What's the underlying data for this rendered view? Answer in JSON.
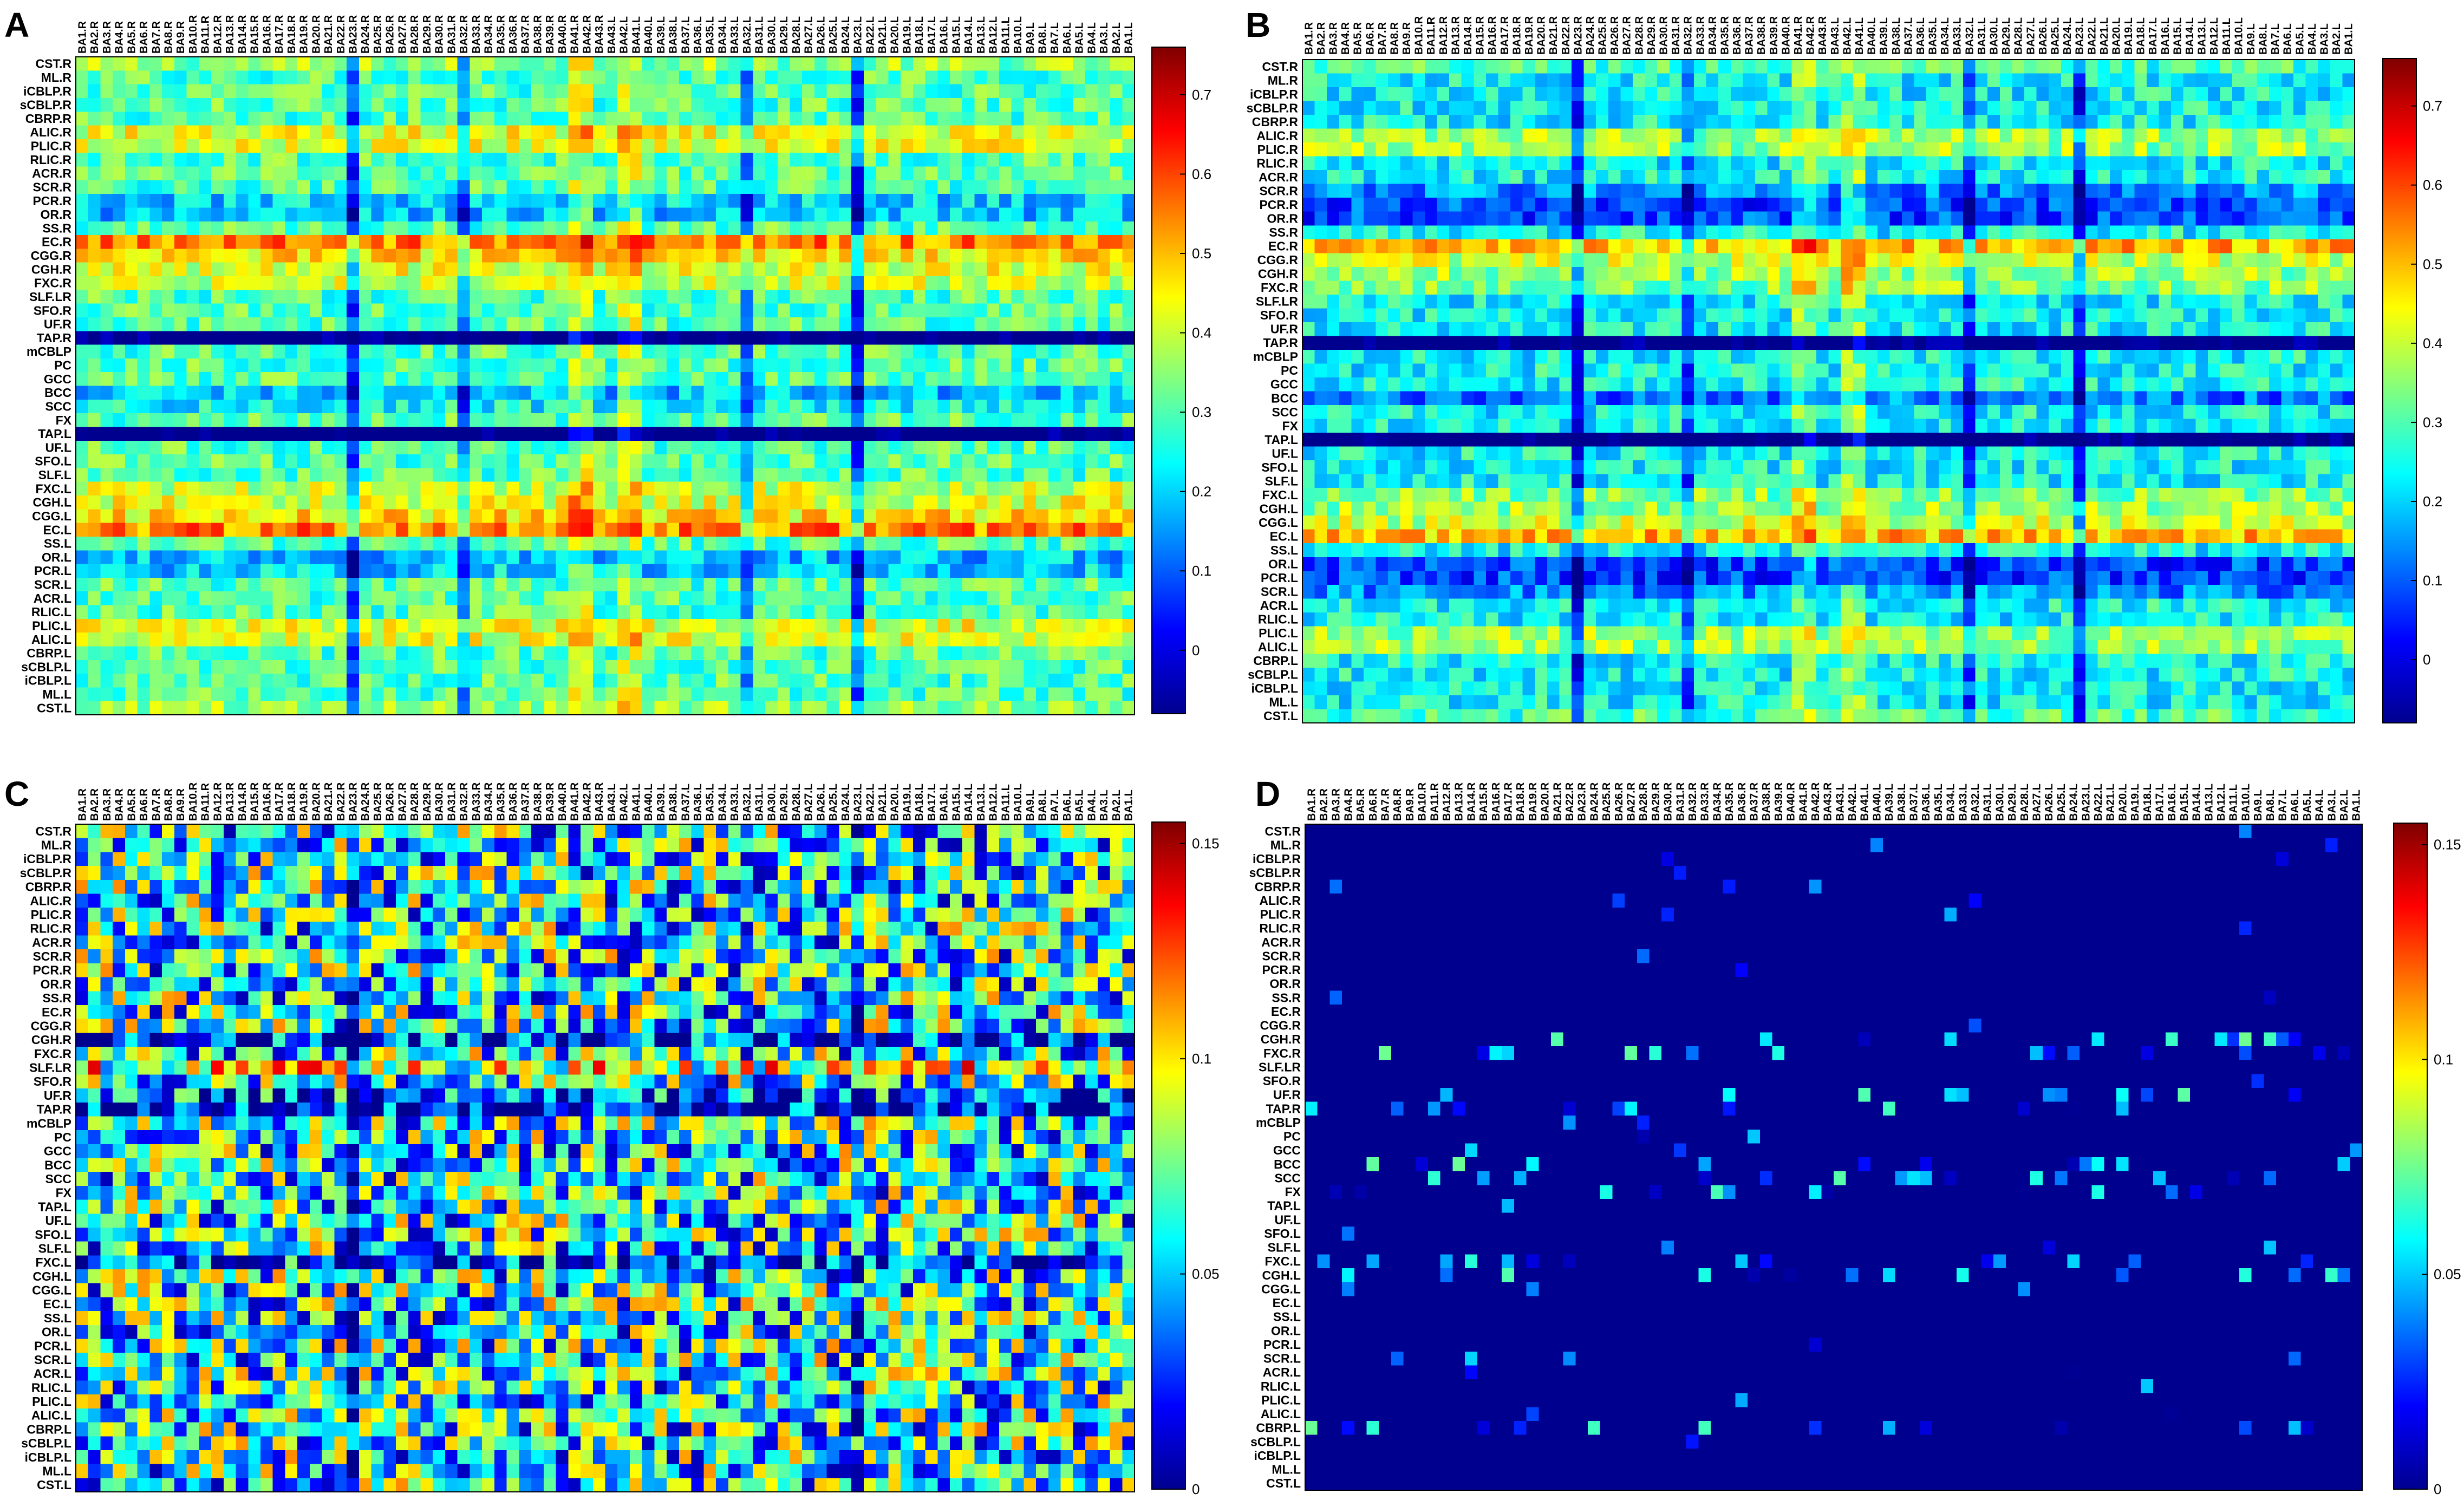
{
  "figure": {
    "description_domain": "heatmap figure, four panels",
    "colormap": [
      "#00008f",
      "#0000ff",
      "#0080ff",
      "#00ffff",
      "#80ff80",
      "#ffff00",
      "#ff8000",
      "#ff0000",
      "#800000"
    ]
  },
  "axes": {
    "rows": [
      "CST.R",
      "ML.R",
      "iCBLP.R",
      "sCBLP.R",
      "CBRP.R",
      "ALIC.R",
      "PLIC.R",
      "RLIC.R",
      "ACR.R",
      "SCR.R",
      "PCR.R",
      "OR.R",
      "SS.R",
      "EC.R",
      "CGG.R",
      "CGH.R",
      "FXC.R",
      "SLF.LR",
      "SFO.R",
      "UF.R",
      "TAP.R",
      "mCBLP",
      "PC",
      "GCC",
      "BCC",
      "SCC",
      "FX",
      "TAP.L",
      "UF.L",
      "SFO.L",
      "SLF.L",
      "FXC.L",
      "CGH.L",
      "CGG.L",
      "EC.L",
      "SS.L",
      "OR.L",
      "PCR.L",
      "SCR.L",
      "ACR.L",
      "RLIC.L",
      "PLIC.L",
      "ALIC.L",
      "CBRP.L",
      "sCBLP.L",
      "iCBLP.L",
      "ML.L",
      "CST.L"
    ],
    "columns": [
      "BA1.R",
      "BA2.R",
      "BA3.R",
      "BA4.R",
      "BA5.R",
      "BA6.R",
      "BA7.R",
      "BA8.R",
      "BA9.R",
      "BA10.R",
      "BA11.R",
      "BA12.R",
      "BA13.R",
      "BA14.R",
      "BA15.R",
      "BA16.R",
      "BA17.R",
      "BA18.R",
      "BA19.R",
      "BA20.R",
      "BA21.R",
      "BA22.R",
      "BA23.R",
      "BA24.R",
      "BA25.R",
      "BA26.R",
      "BA27.R",
      "BA28.R",
      "BA29.R",
      "BA30.R",
      "BA31.R",
      "BA32.R",
      "BA33.R",
      "BA34.R",
      "BA35.R",
      "BA36.R",
      "BA37.R",
      "BA38.R",
      "BA39.R",
      "BA40.R",
      "BA41.R",
      "BA42.R",
      "BA43.R",
      "BA43.L",
      "BA42.L",
      "BA41.L",
      "BA40.L",
      "BA39.L",
      "BA38.L",
      "BA37.L",
      "BA36.L",
      "BA35.L",
      "BA34.L",
      "BA33.L",
      "BA32.L",
      "BA31.L",
      "BA30.L",
      "BA29.L",
      "BA28.L",
      "BA27.L",
      "BA26.L",
      "BA25.L",
      "BA24.L",
      "BA23.L",
      "BA22.L",
      "BA21.L",
      "BA20.L",
      "BA19.L",
      "BA18.L",
      "BA17.L",
      "BA16.L",
      "BA15.L",
      "BA14.L",
      "BA13.L",
      "BA12.L",
      "BA11.L",
      "BA10.L",
      "BA9.L",
      "BA8.L",
      "BA7.L",
      "BA6.L",
      "BA5.L",
      "BA4.L",
      "BA3.L",
      "BA2.L",
      "BA1.L"
    ]
  },
  "chart_data": [
    {
      "panel": "A",
      "type": "heatmap",
      "colorbar": {
        "ticks": [
          0,
          0.1,
          0.2,
          0.3,
          0.4,
          0.5,
          0.6,
          0.7
        ],
        "range": [
          -0.08,
          0.76
        ]
      },
      "pattern": {
        "base": 0.3,
        "row_offsets": {
          "EC.R": 0.25,
          "EC.L": 0.25,
          "CGG.R": 0.16,
          "CGG.L": 0.16,
          "CGH.R": 0.12,
          "CGH.L": 0.12,
          "FXC.R": 0.1,
          "FXC.L": 0.1,
          "ALIC.R": 0.12,
          "ALIC.L": 0.12,
          "PLIC.R": 0.12,
          "PLIC.L": 0.12,
          "TAP.R": -0.42,
          "TAP.L": -0.42,
          "OR.R": -0.12,
          "PCR.R": -0.1,
          "OR.L": -0.12,
          "PCR.L": -0.1,
          "BCC": -0.12,
          "SCC": -0.06,
          "CST.R": 0.05,
          "CST.L": 0.05
        },
        "col_offsets": {
          "BA23.R": -0.22,
          "BA23.L": -0.22,
          "BA32.R": -0.15,
          "BA32.L": -0.15,
          "BA41.R": 0.1,
          "BA42.R": 0.1,
          "BA41.L": 0.1,
          "BA42.L": 0.1
        },
        "noise": 0.09
      }
    },
    {
      "panel": "B",
      "type": "heatmap",
      "colorbar": {
        "ticks": [
          0,
          0.1,
          0.2,
          0.3,
          0.4,
          0.5,
          0.6,
          0.7
        ],
        "range": [
          -0.08,
          0.76
        ]
      },
      "pattern": {
        "base": 0.24,
        "row_offsets": {
          "EC.R": 0.26,
          "EC.L": 0.26,
          "CGG.R": 0.16,
          "CGG.L": 0.16,
          "CGH.R": 0.12,
          "CGH.L": 0.12,
          "FXC.R": 0.1,
          "FXC.L": 0.1,
          "ALIC.R": 0.12,
          "ALIC.L": 0.12,
          "PLIC.R": 0.12,
          "PLIC.L": 0.12,
          "TAP.R": -0.36,
          "TAP.L": -0.36,
          "OR.R": -0.16,
          "PCR.R": -0.16,
          "SCR.R": -0.1,
          "OR.L": -0.16,
          "PCR.L": -0.16,
          "SCR.L": -0.1,
          "BCC": -0.12,
          "CST.R": 0.05,
          "CST.L": 0.05
        },
        "col_offsets": {
          "BA23.R": -0.2,
          "BA23.L": -0.2,
          "BA32.R": -0.15,
          "BA32.L": -0.15,
          "BA41.R": 0.1,
          "BA42.R": 0.1,
          "BA41.L": 0.1,
          "BA42.L": 0.1
        },
        "noise": 0.09
      }
    },
    {
      "panel": "C",
      "type": "heatmap",
      "colorbar": {
        "ticks": [
          0,
          0.05,
          0.1,
          0.15
        ],
        "range": [
          0,
          0.155
        ]
      },
      "pattern": {
        "base": 0.06,
        "row_offsets": {
          "CGH.R": -0.045,
          "TAP.R": -0.05,
          "UF.R": -0.03,
          "FXC.L": -0.03,
          "SLF.LR": 0.03
        },
        "col_offsets": {
          "BA23.R": -0.04,
          "BA23.L": -0.03
        },
        "noise": 0.055
      }
    },
    {
      "panel": "D",
      "type": "heatmap",
      "colorbar": {
        "ticks": [
          0,
          0.05,
          0.1,
          0.15
        ],
        "range": [
          0,
          0.155
        ]
      },
      "pattern": {
        "base": 0.0,
        "sparse_rows": [
          "CGH.R",
          "FXC.R",
          "UF.R",
          "TAP.R",
          "SCC",
          "BCC",
          "FX",
          "FXC.L",
          "CGH.L",
          "CBRP.L"
        ],
        "sparse_max": 0.075
      }
    }
  ]
}
